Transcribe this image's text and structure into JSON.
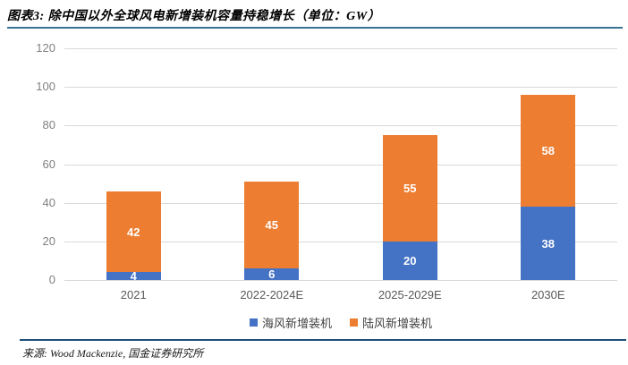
{
  "header": {
    "title": "图表3: 除中国以外全球风电新增装机容量持稳增长（单位：GW）"
  },
  "footer": {
    "source": "来源: Wood Mackenzie, 国金证券研究所"
  },
  "colors": {
    "offshore_blue": "#4472C4",
    "onshore_orange": "#ED7D31",
    "title_rule": "#3A7191",
    "footer_rule": "#1F4E79",
    "gridline": "#D9D9D9"
  },
  "chart_data": {
    "type": "bar",
    "stacked": true,
    "title": "图表3: 除中国以外全球风电新增装机容量持稳增长（单位：GW）",
    "categories": [
      "2021",
      "2022-2024E",
      "2025-2029E",
      "2030E"
    ],
    "series": [
      {
        "name": "海风新增装机",
        "color_key": "offshore_blue",
        "values": [
          4,
          6,
          20,
          38
        ]
      },
      {
        "name": "陆风新增装机",
        "color_key": "onshore_orange",
        "values": [
          42,
          45,
          55,
          58
        ]
      }
    ],
    "totals": [
      46,
      51,
      75,
      96
    ],
    "xlabel": "",
    "ylabel": "",
    "ylim": [
      0,
      120
    ],
    "yticks": [
      0,
      20,
      40,
      60,
      80,
      100,
      120
    ],
    "grid": true,
    "legend_position": "bottom",
    "data_labels": true
  }
}
